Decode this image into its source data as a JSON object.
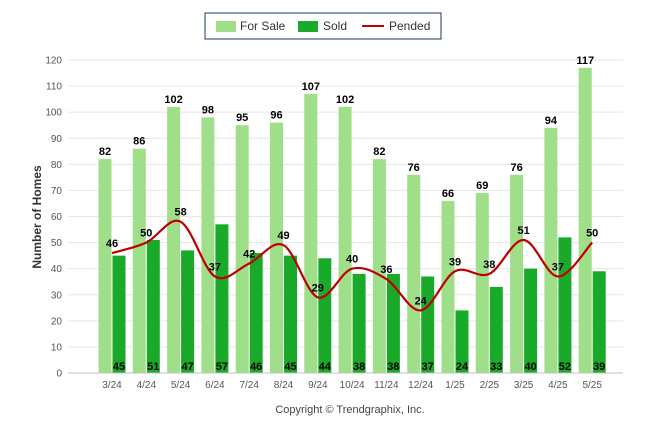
{
  "legend": {
    "for_sale": "For Sale",
    "sold": "Sold",
    "pended": "Pended"
  },
  "footer": {
    "copyright": "Copyright © Trendgraphix, Inc."
  },
  "colors": {
    "for_sale": "#9fdf8a",
    "sold": "#1aaa2a",
    "pended": "#c00000",
    "grid": "#e6e6e6",
    "axis": "#c0c0c0"
  },
  "chart_data": {
    "type": "bar",
    "categories": [
      "3/24",
      "4/24",
      "5/24",
      "6/24",
      "7/24",
      "8/24",
      "9/24",
      "10/24",
      "11/24",
      "12/24",
      "1/25",
      "2/25",
      "3/25",
      "4/25",
      "5/25"
    ],
    "series": [
      {
        "name": "For Sale",
        "type": "bar",
        "values": [
          82,
          86,
          102,
          98,
          95,
          96,
          107,
          102,
          82,
          76,
          66,
          69,
          76,
          94,
          117
        ]
      },
      {
        "name": "Sold",
        "type": "bar",
        "values": [
          45,
          51,
          47,
          57,
          46,
          45,
          44,
          38,
          38,
          37,
          24,
          33,
          40,
          52,
          39
        ]
      },
      {
        "name": "Pended",
        "type": "line",
        "values": [
          46,
          50,
          58,
          37,
          42,
          49,
          29,
          40,
          36,
          24,
          39,
          38,
          51,
          37,
          50
        ]
      }
    ],
    "title": "",
    "xlabel": "",
    "ylabel": "Number of Homes",
    "ylim": [
      0,
      120
    ],
    "yticks": [
      0,
      10,
      20,
      30,
      40,
      50,
      60,
      70,
      80,
      90,
      100,
      110,
      120
    ],
    "grid": true,
    "legend_position": "top-center"
  }
}
